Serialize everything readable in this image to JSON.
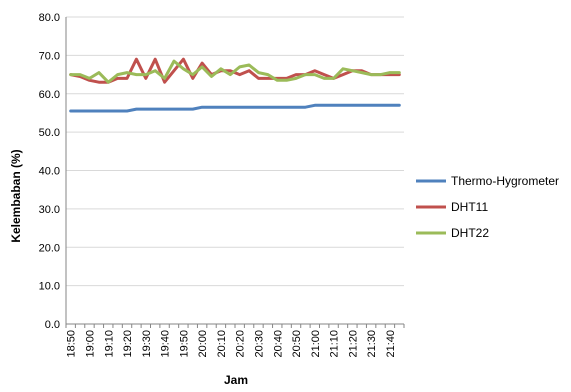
{
  "chart_data": {
    "type": "line",
    "title": "",
    "xlabel": "Jam",
    "ylabel": "Kelembaban (%)",
    "ylim": [
      0,
      80
    ],
    "ytick_values": [
      0,
      10,
      20,
      30,
      40,
      50,
      60,
      70,
      80
    ],
    "ytick_labels": [
      "0.0",
      "10.0",
      "20.0",
      "30.0",
      "40.0",
      "50.0",
      "60.0",
      "70.0",
      "80.0"
    ],
    "grid": true,
    "legend_position": "right",
    "categories": [
      "18:50",
      "18:55",
      "19:00",
      "19:05",
      "19:10",
      "19:15",
      "19:20",
      "19:25",
      "19:30",
      "19:35",
      "19:40",
      "19:45",
      "19:50",
      "19:55",
      "20:00",
      "20:05",
      "20:10",
      "20:15",
      "20:20",
      "20:25",
      "20:30",
      "20:35",
      "20:40",
      "20:45",
      "20:50",
      "20:55",
      "21:00",
      "21:05",
      "21:10",
      "21:15",
      "21:20",
      "21:25",
      "21:30",
      "21:35",
      "21:40",
      "21:45"
    ],
    "tick_labels": [
      "18:50",
      "19:00",
      "19:10",
      "19:20",
      "19:30",
      "19:40",
      "19:50",
      "20:00",
      "20:10",
      "20:20",
      "20:30",
      "20:40",
      "20:50",
      "21:00",
      "21:10",
      "21:20",
      "21:30",
      "21:40"
    ],
    "series": [
      {
        "name": "Thermo-Hygrometer",
        "color": "#4f81bd",
        "values": [
          55.5,
          55.5,
          55.5,
          55.5,
          55.5,
          55.5,
          55.5,
          56.0,
          56.0,
          56.0,
          56.0,
          56.0,
          56.0,
          56.0,
          56.5,
          56.5,
          56.5,
          56.5,
          56.5,
          56.5,
          56.5,
          56.5,
          56.5,
          56.5,
          56.5,
          56.5,
          57.0,
          57.0,
          57.0,
          57.0,
          57.0,
          57.0,
          57.0,
          57.0,
          57.0,
          57.0
        ]
      },
      {
        "name": "DHT11",
        "color": "#c0504d",
        "values": [
          65.0,
          64.5,
          63.5,
          63.0,
          63.0,
          64.0,
          64.0,
          69.0,
          64.0,
          69.0,
          63.0,
          66.0,
          69.0,
          64.0,
          68.0,
          65.0,
          66.0,
          66.0,
          65.0,
          66.0,
          64.0,
          64.0,
          64.0,
          64.0,
          65.0,
          65.0,
          66.0,
          65.0,
          64.0,
          65.0,
          66.0,
          66.0,
          65.0,
          65.0,
          65.0,
          65.0
        ]
      },
      {
        "name": "DHT22",
        "color": "#9bbb59",
        "values": [
          65.0,
          65.0,
          64.0,
          65.5,
          63.0,
          65.0,
          65.5,
          65.0,
          65.0,
          66.0,
          64.0,
          68.5,
          66.5,
          65.0,
          67.0,
          64.5,
          66.5,
          65.0,
          67.0,
          67.5,
          65.5,
          65.0,
          63.5,
          63.5,
          64.0,
          65.0,
          65.0,
          64.0,
          64.0,
          66.5,
          66.0,
          65.5,
          65.0,
          65.0,
          65.5,
          65.5
        ]
      }
    ]
  }
}
